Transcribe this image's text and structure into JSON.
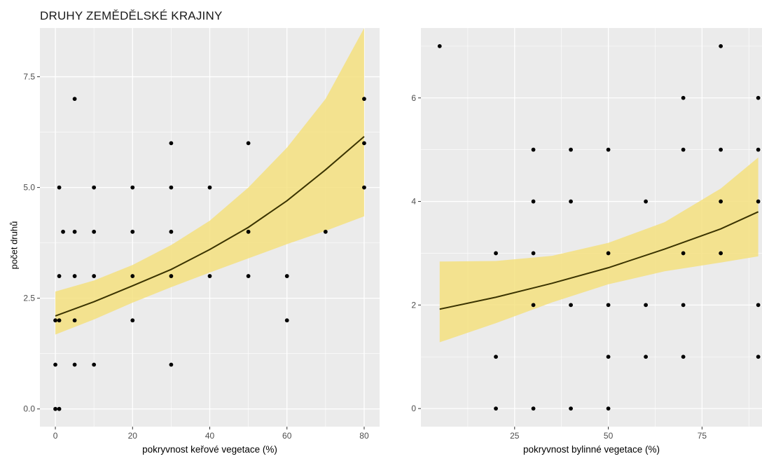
{
  "title": "DRUHY ZEMĚDĚLSKÉ KRAJINY",
  "colors": {
    "panel_bg": "#EBEBEB",
    "grid": "#FFFFFF",
    "ribbon": "#F5E17F",
    "line": "#3A3300",
    "points": "#000000",
    "axis_text": "#4D4D4D"
  },
  "chart_data": [
    {
      "type": "scatter",
      "title": "",
      "xlabel": "pokryvnost keřové vegetace (%)",
      "ylabel": "počet druhů",
      "xlim": [
        -4,
        84
      ],
      "ylim": [
        -0.4,
        8.6
      ],
      "x_ticks": [
        0,
        20,
        40,
        60,
        80
      ],
      "x_tick_labels": [
        "0",
        "20",
        "40",
        "60",
        "80"
      ],
      "y_ticks": [
        0,
        2.5,
        5,
        7.5
      ],
      "y_tick_labels": [
        "0.0",
        "2.5",
        "5.0",
        "7.5"
      ],
      "grid": true,
      "points": [
        {
          "x": 0,
          "y": 0
        },
        {
          "x": 1,
          "y": 0
        },
        {
          "x": 0,
          "y": 1
        },
        {
          "x": 5,
          "y": 1
        },
        {
          "x": 10,
          "y": 1
        },
        {
          "x": 30,
          "y": 1
        },
        {
          "x": 0,
          "y": 2
        },
        {
          "x": 1,
          "y": 2
        },
        {
          "x": 5,
          "y": 2
        },
        {
          "x": 20,
          "y": 2
        },
        {
          "x": 60,
          "y": 2
        },
        {
          "x": 1,
          "y": 3
        },
        {
          "x": 5,
          "y": 3
        },
        {
          "x": 10,
          "y": 3
        },
        {
          "x": 20,
          "y": 3
        },
        {
          "x": 30,
          "y": 3
        },
        {
          "x": 40,
          "y": 3
        },
        {
          "x": 50,
          "y": 3
        },
        {
          "x": 60,
          "y": 3
        },
        {
          "x": 2,
          "y": 4
        },
        {
          "x": 5,
          "y": 4
        },
        {
          "x": 10,
          "y": 4
        },
        {
          "x": 20,
          "y": 4
        },
        {
          "x": 30,
          "y": 4
        },
        {
          "x": 50,
          "y": 4
        },
        {
          "x": 70,
          "y": 4
        },
        {
          "x": 1,
          "y": 5
        },
        {
          "x": 10,
          "y": 5
        },
        {
          "x": 20,
          "y": 5
        },
        {
          "x": 30,
          "y": 5
        },
        {
          "x": 40,
          "y": 5
        },
        {
          "x": 80,
          "y": 5
        },
        {
          "x": 30,
          "y": 6
        },
        {
          "x": 50,
          "y": 6
        },
        {
          "x": 80,
          "y": 6
        },
        {
          "x": 5,
          "y": 7
        },
        {
          "x": 80,
          "y": 7
        }
      ],
      "fit": {
        "x": [
          0,
          10,
          20,
          30,
          40,
          50,
          60,
          70,
          80
        ],
        "y": [
          2.1,
          2.42,
          2.78,
          3.15,
          3.6,
          4.1,
          4.7,
          5.4,
          6.15
        ],
        "lower": [
          1.68,
          2.02,
          2.4,
          2.75,
          3.08,
          3.4,
          3.72,
          4.02,
          4.35
        ],
        "upper": [
          2.65,
          2.9,
          3.25,
          3.7,
          4.25,
          5.0,
          5.9,
          7.0,
          8.6
        ]
      }
    },
    {
      "type": "scatter",
      "title": "",
      "xlabel": "pokryvnost bylinné vegetace (%)",
      "ylabel": "",
      "xlim": [
        0,
        91
      ],
      "ylim": [
        -0.35,
        7.35
      ],
      "x_ticks": [
        25,
        50,
        75
      ],
      "x_tick_labels": [
        "25",
        "50",
        "75"
      ],
      "y_ticks": [
        0,
        2,
        4,
        6
      ],
      "y_tick_labels": [
        "0",
        "2",
        "4",
        "6"
      ],
      "grid": true,
      "points": [
        {
          "x": 5,
          "y": 7
        },
        {
          "x": 20,
          "y": 0
        },
        {
          "x": 30,
          "y": 0
        },
        {
          "x": 40,
          "y": 0
        },
        {
          "x": 50,
          "y": 0
        },
        {
          "x": 20,
          "y": 1
        },
        {
          "x": 50,
          "y": 1
        },
        {
          "x": 60,
          "y": 1
        },
        {
          "x": 70,
          "y": 1
        },
        {
          "x": 90,
          "y": 1
        },
        {
          "x": 30,
          "y": 2
        },
        {
          "x": 40,
          "y": 2
        },
        {
          "x": 50,
          "y": 2
        },
        {
          "x": 60,
          "y": 2
        },
        {
          "x": 70,
          "y": 2
        },
        {
          "x": 90,
          "y": 2
        },
        {
          "x": 20,
          "y": 3
        },
        {
          "x": 30,
          "y": 3
        },
        {
          "x": 50,
          "y": 3
        },
        {
          "x": 70,
          "y": 3
        },
        {
          "x": 80,
          "y": 3
        },
        {
          "x": 30,
          "y": 4
        },
        {
          "x": 40,
          "y": 4
        },
        {
          "x": 60,
          "y": 4
        },
        {
          "x": 80,
          "y": 4
        },
        {
          "x": 90,
          "y": 4
        },
        {
          "x": 30,
          "y": 5
        },
        {
          "x": 40,
          "y": 5
        },
        {
          "x": 50,
          "y": 5
        },
        {
          "x": 70,
          "y": 5
        },
        {
          "x": 80,
          "y": 5
        },
        {
          "x": 90,
          "y": 5
        },
        {
          "x": 70,
          "y": 6
        },
        {
          "x": 90,
          "y": 6
        },
        {
          "x": 80,
          "y": 7
        }
      ],
      "fit": {
        "x": [
          5,
          20,
          35,
          50,
          65,
          80,
          90
        ],
        "y": [
          1.92,
          2.15,
          2.42,
          2.72,
          3.08,
          3.47,
          3.8
        ],
        "lower": [
          1.28,
          1.65,
          2.05,
          2.4,
          2.65,
          2.82,
          2.94
        ],
        "upper": [
          2.84,
          2.85,
          2.95,
          3.2,
          3.6,
          4.25,
          4.85
        ]
      }
    }
  ]
}
